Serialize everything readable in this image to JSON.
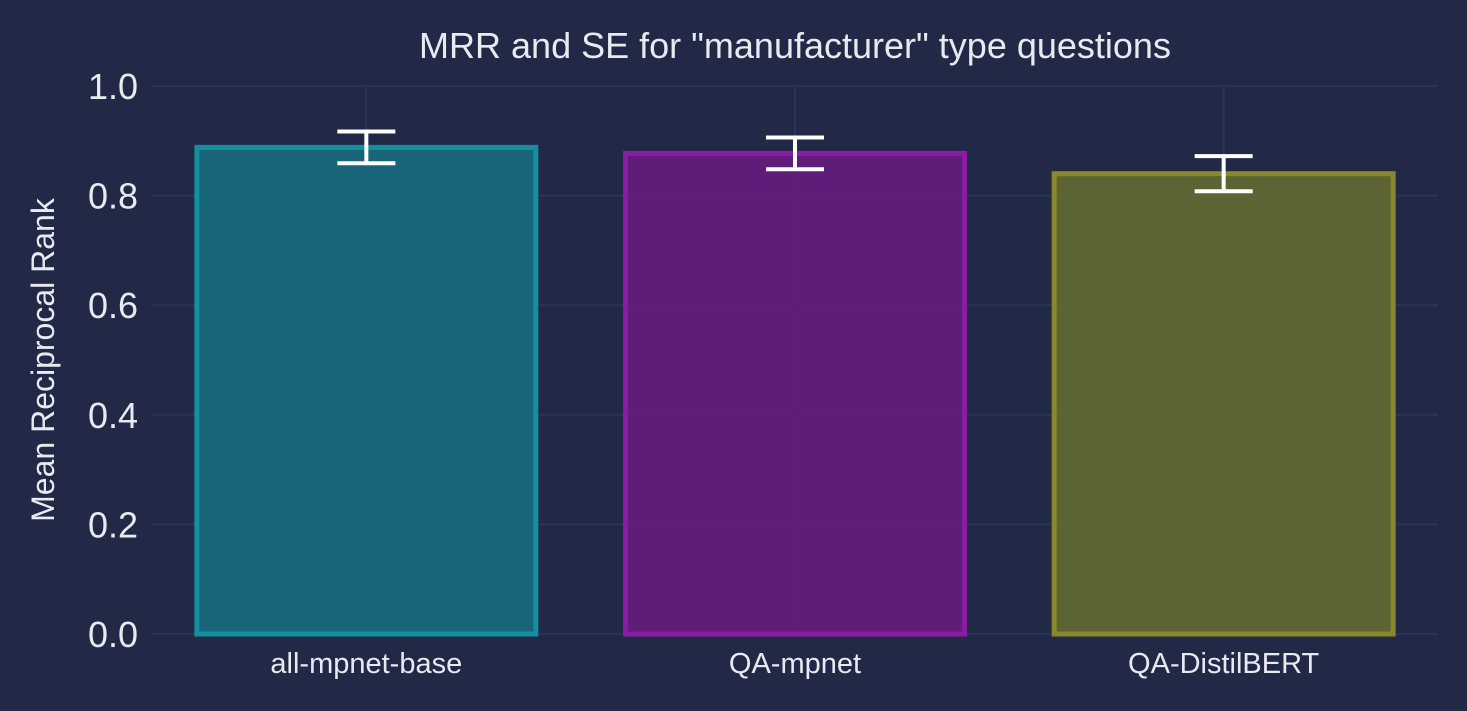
{
  "chart_data": {
    "type": "bar",
    "title": "MRR and SE for \"manufacturer\" type questions",
    "xlabel": "",
    "ylabel": "Mean Reciprocal Rank",
    "ylim": [
      0,
      1.0
    ],
    "yticks": [
      "0.0",
      "0.2",
      "0.4",
      "0.6",
      "0.8",
      "1.0"
    ],
    "grid": true,
    "categories": [
      "all-mpnet-base",
      "QA-mpnet",
      "QA-DistilBERT"
    ],
    "values": [
      0.888,
      0.877,
      0.84
    ],
    "errors": [
      0.029,
      0.029,
      0.032
    ],
    "colors": {
      "background": "#212946",
      "grid": "#2A3459",
      "text": "#e8eaf0",
      "errorbar": "#ffffff",
      "bars": [
        {
          "fill": "#186A7E",
          "stroke": "#13909F"
        },
        {
          "fill": "#631C7D",
          "stroke": "#8B1BA6"
        },
        {
          "fill": "#636932",
          "stroke": "#88892C"
        }
      ]
    }
  }
}
